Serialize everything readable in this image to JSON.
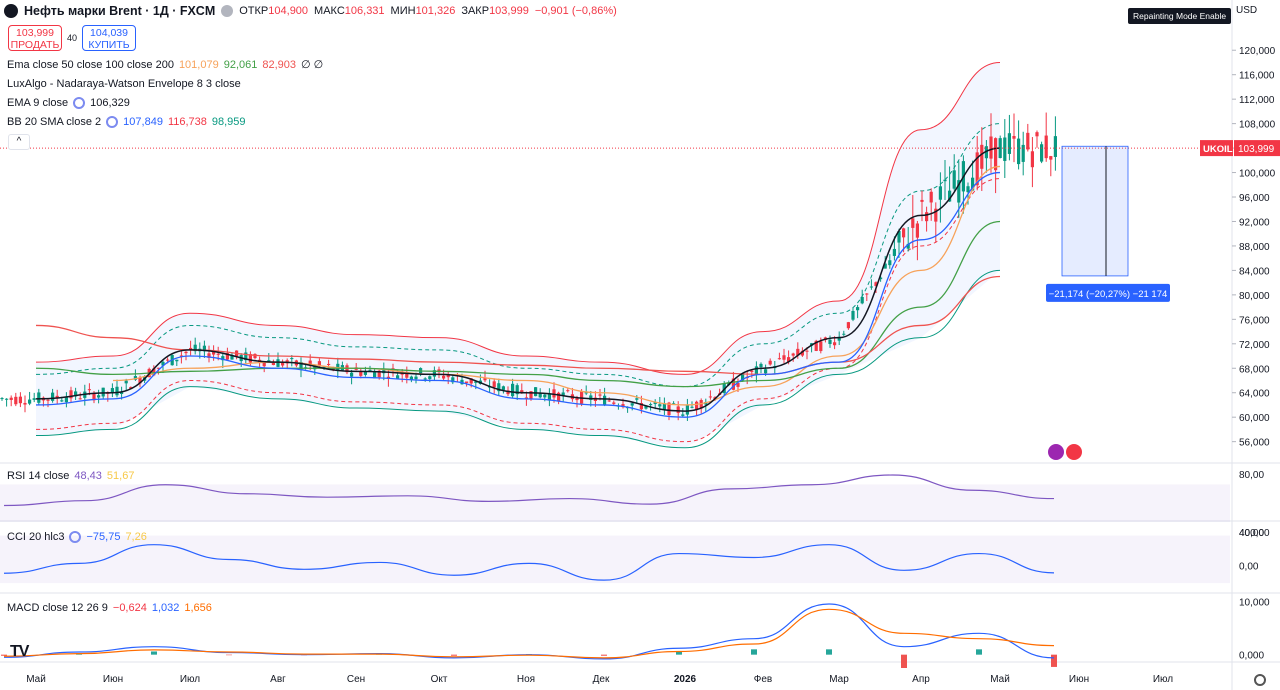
{
  "header": {
    "symbol_title": "Нефть марки Brent · 1Д · FXCM",
    "open_label": "ОТКР",
    "open_value": "104,900",
    "high_label": "МАКС",
    "high_value": "106,331",
    "low_label": "МИН",
    "low_value": "101,326",
    "close_label": "ЗАКР",
    "close_value": "103,999",
    "change": "−0,901 (−0,86%)"
  },
  "trade": {
    "sell_price": "103,999",
    "sell_label": "ПРОДАТЬ",
    "spread": "40",
    "buy_price": "104,039",
    "buy_label": "КУПИТЬ"
  },
  "indicators": {
    "ema_multi": {
      "label": "Ema close 50 close 100 close 200",
      "v1": "101,079",
      "v2": "92,061",
      "v3": "82,903",
      "v4": "∅ ∅"
    },
    "nw_envelope": {
      "label": "LuxAlgo - Nadaraya-Watson Envelope 8 3 close"
    },
    "ema9": {
      "label": "EMA 9 close",
      "value": "106,329"
    },
    "bb": {
      "label": "BB 20 SMA close 2",
      "v1": "107,849",
      "v2": "116,738",
      "v3": "98,959"
    },
    "rsi": {
      "label": "RSI 14 close",
      "v1": "48,43",
      "v2": "51,67"
    },
    "cci": {
      "label": "CCI 20 hlc3",
      "v1": "−75,75",
      "v2": "7,26"
    },
    "macd": {
      "label": "MACD close 12 26 9",
      "v1": "−0,624",
      "v2": "1,032",
      "v3": "1,656"
    }
  },
  "repaint_label": "Repainting Mode Enable",
  "currency": "USD",
  "symbol_tag": "UKOIL",
  "last_price_tag": "103,999",
  "measure_label": "−21,174 (−20,27%) −21 174",
  "collapse_glyph": "^",
  "colors": {
    "up": "#089981",
    "down": "#f23645",
    "ema9": "#131722",
    "ema50": "#f7a25a",
    "ema100": "#43a047",
    "ema200": "#ef5350",
    "bb": "#2962ff",
    "nw": "#f23645"
  },
  "chart_data": [
    {
      "type": "line",
      "title": "Нефть марки Brent · 1Д · FXCM",
      "ylim": [
        53,
        122
      ],
      "y_ticks": [
        "120,000",
        "116,000",
        "112,000",
        "108,000",
        "104,000",
        "100,000",
        "96,000",
        "92,000",
        "88,000",
        "84,000",
        "80,000",
        "76,000",
        "72,000",
        "68,000",
        "64,000",
        "60,000",
        "56,000"
      ],
      "x_tick_labels": [
        "Май",
        "Июн",
        "Июл",
        "Авг",
        "Сен",
        "Окт",
        "Ноя",
        "Дек",
        "2026",
        "Фев",
        "Мар",
        "Апр",
        "Май",
        "Июн",
        "Июл"
      ],
      "series": [
        {
          "name": "Close",
          "x": [
            "Май",
            "Июн",
            "Июл",
            "Авг",
            "Сен",
            "Окт",
            "Ноя",
            "Дек",
            "2026",
            "Фев",
            "Мар",
            "Апр",
            "Май"
          ],
          "values": [
            63,
            64,
            71,
            69,
            67.5,
            67,
            64,
            63,
            61,
            68,
            73,
            93,
            104
          ]
        },
        {
          "name": "EMA 50",
          "values": [
            null,
            66,
            68,
            69,
            68,
            67,
            66,
            64,
            62,
            65,
            70,
            84,
            101
          ]
        },
        {
          "name": "EMA 100",
          "values": [
            68,
            67,
            67.5,
            68,
            68,
            67.5,
            67,
            66,
            65,
            66,
            68,
            78,
            92
          ]
        },
        {
          "name": "EMA 200",
          "values": [
            75,
            73,
            71,
            70,
            69.5,
            69,
            68.5,
            68,
            67.5,
            67,
            69,
            75,
            83
          ]
        }
      ]
    },
    {
      "type": "line",
      "title": "RSI 14 close",
      "y_ticks": [
        "80,00",
        "40,00"
      ],
      "series": [
        {
          "name": "RSI",
          "values": [
            38,
            45,
            68,
            55,
            50,
            52,
            44,
            48,
            40,
            62,
            68,
            82,
            60,
            48
          ]
        }
      ]
    },
    {
      "type": "line",
      "title": "CCI 20 hlc3",
      "y_ticks": [
        "400,00",
        "0,00"
      ],
      "series": [
        {
          "name": "CCI",
          "values": [
            -80,
            20,
            210,
            60,
            -40,
            30,
            -100,
            20,
            -150,
            120,
            80,
            210,
            -50,
            120,
            -76
          ]
        }
      ]
    },
    {
      "type": "bar",
      "title": "MACD close 12 26 9",
      "y_ticks": [
        "10,000",
        "0,000"
      ],
      "series": [
        {
          "name": "MACD",
          "values": [
            -0.5,
            0.5,
            1.5,
            0.4,
            0,
            0.2,
            -0.6,
            0,
            -0.8,
            1.2,
            3,
            9.5,
            1.5,
            4,
            -0.6
          ]
        },
        {
          "name": "Signal",
          "values": [
            -0.3,
            0.2,
            0.9,
            0.5,
            0.1,
            0.1,
            -0.4,
            -0.1,
            -0.6,
            0.6,
            2,
            8.5,
            4,
            3,
            1.7
          ]
        }
      ]
    }
  ]
}
